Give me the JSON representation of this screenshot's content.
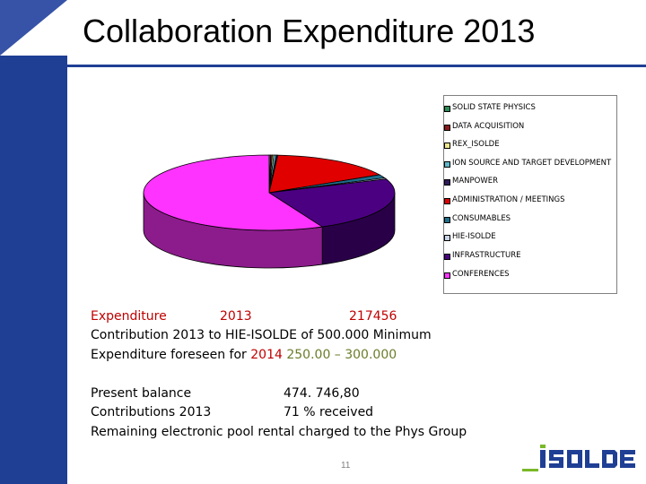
{
  "slide": {
    "title": "Collaboration Expenditure 2013",
    "page_number": "11",
    "logo_text": "ISOLDE"
  },
  "colors": {
    "brand_blue": "#1f3f95",
    "text_red": "#c00000",
    "text_green": "#6a7d2a"
  },
  "chart_data": {
    "type": "pie",
    "title": "",
    "legend_position": "right",
    "categories": [
      "SOLID STATE PHYSICS",
      "DATA ACQUISITION",
      "REX_ISOLDE",
      "ION SOURCE AND TARGET DEVELOPMENT",
      "MANPOWER",
      "ADMINISTRATION / MEETINGS",
      "CONSUMABLES",
      "HIE-ISOLDE",
      "INFRASTRUCTURE",
      "CONFERENCES"
    ],
    "values": [
      0.2,
      0.2,
      0.2,
      0.3,
      0.2,
      16,
      1.5,
      0.5,
      24,
      57
    ],
    "colors": [
      "#2e8b57",
      "#8b1a1a",
      "#f0e68c",
      "#5fb7c8",
      "#2f1b5e",
      "#e00000",
      "#1f6f8b",
      "#c8d4e8",
      "#4b0082",
      "#ff33ff"
    ]
  },
  "text": {
    "expenditure_label": "Expenditure",
    "expenditure_year": "2013",
    "expenditure_value": "217456",
    "contribution_line": "Contribution 2013 to HIE-ISOLDE of 500.000 Minimum",
    "foreseen_prefix": "Expenditure foreseen for ",
    "foreseen_year": "2014",
    "foreseen_range": "250.00 – 300.000",
    "present_balance_label": "Present balance",
    "present_balance_value": "474. 746,80",
    "contributions_label": "Contributions 2013",
    "contributions_value": "71 % received",
    "remaining_line": "Remaining electronic pool rental charged to the Phys Group"
  }
}
